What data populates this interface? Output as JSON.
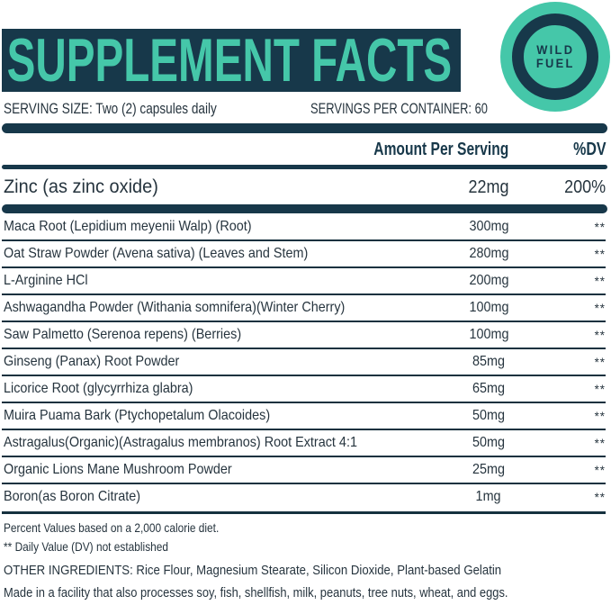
{
  "theme": {
    "navy": "#17384A",
    "teal": "#45C7A9",
    "text": "#26343E",
    "line": "#16313F",
    "bg": "#FFFFFF"
  },
  "header": {
    "title": "SUPPLEMENT FACTS"
  },
  "logo": {
    "line1": "WILD",
    "line2": "FUEL"
  },
  "serving": {
    "size": "SERVING SIZE: Two (2) capsules daily",
    "per_container": "SERVINGS PER CONTAINER: 60"
  },
  "table": {
    "columns": {
      "amount": "Amount Per Serving",
      "dv": "%DV"
    },
    "primary_row": {
      "name": "Zinc (as zinc oxide)",
      "amount": "22mg",
      "dv": "200%"
    },
    "rows": [
      {
        "name": "Maca Root (Lepidium meyenii Walp) (Root)",
        "amount": "300mg",
        "dv": "**"
      },
      {
        "name": "Oat Straw Powder (Avena sativa) (Leaves and Stem)",
        "amount": "280mg",
        "dv": "**"
      },
      {
        "name": "L-Arginine HCl",
        "amount": "200mg",
        "dv": "**"
      },
      {
        "name": "Ashwagandha Powder (Withania somnifera)(Winter Cherry)",
        "amount": "100mg",
        "dv": "**"
      },
      {
        "name": "Saw Palmetto (Serenoa repens) (Berries)",
        "amount": "100mg",
        "dv": "**"
      },
      {
        "name": "Ginseng (Panax) Root Powder",
        "amount": "85mg",
        "dv": "**"
      },
      {
        "name": "Licorice Root (glycyrrhiza glabra)",
        "amount": "65mg",
        "dv": "**"
      },
      {
        "name": "Muira Puama Bark (Ptychopetalum Olacoides)",
        "amount": "50mg",
        "dv": "**"
      },
      {
        "name": "Astragalus(Organic)(Astragalus membranos) Root Extract 4:1",
        "amount": "50mg",
        "dv": "**"
      },
      {
        "name": "Organic Lions Mane Mushroom Powder",
        "amount": "25mg",
        "dv": "**"
      },
      {
        "name": "Boron(as Boron Citrate)",
        "amount": "1mg",
        "dv": "**"
      }
    ]
  },
  "footnotes": {
    "percent_values": "Percent Values based on a 2,000 calorie diet.",
    "daily_value": "** Daily Value (DV) not established",
    "other_ingredients": "OTHER INGREDIENTS: Rice Flour, Magnesium Stearate, Silicon Dioxide, Plant-based Gelatin",
    "allergen": "Made in a facility that also processes soy, fish, shellfish, milk, peanuts, tree nuts, wheat, and eggs."
  }
}
